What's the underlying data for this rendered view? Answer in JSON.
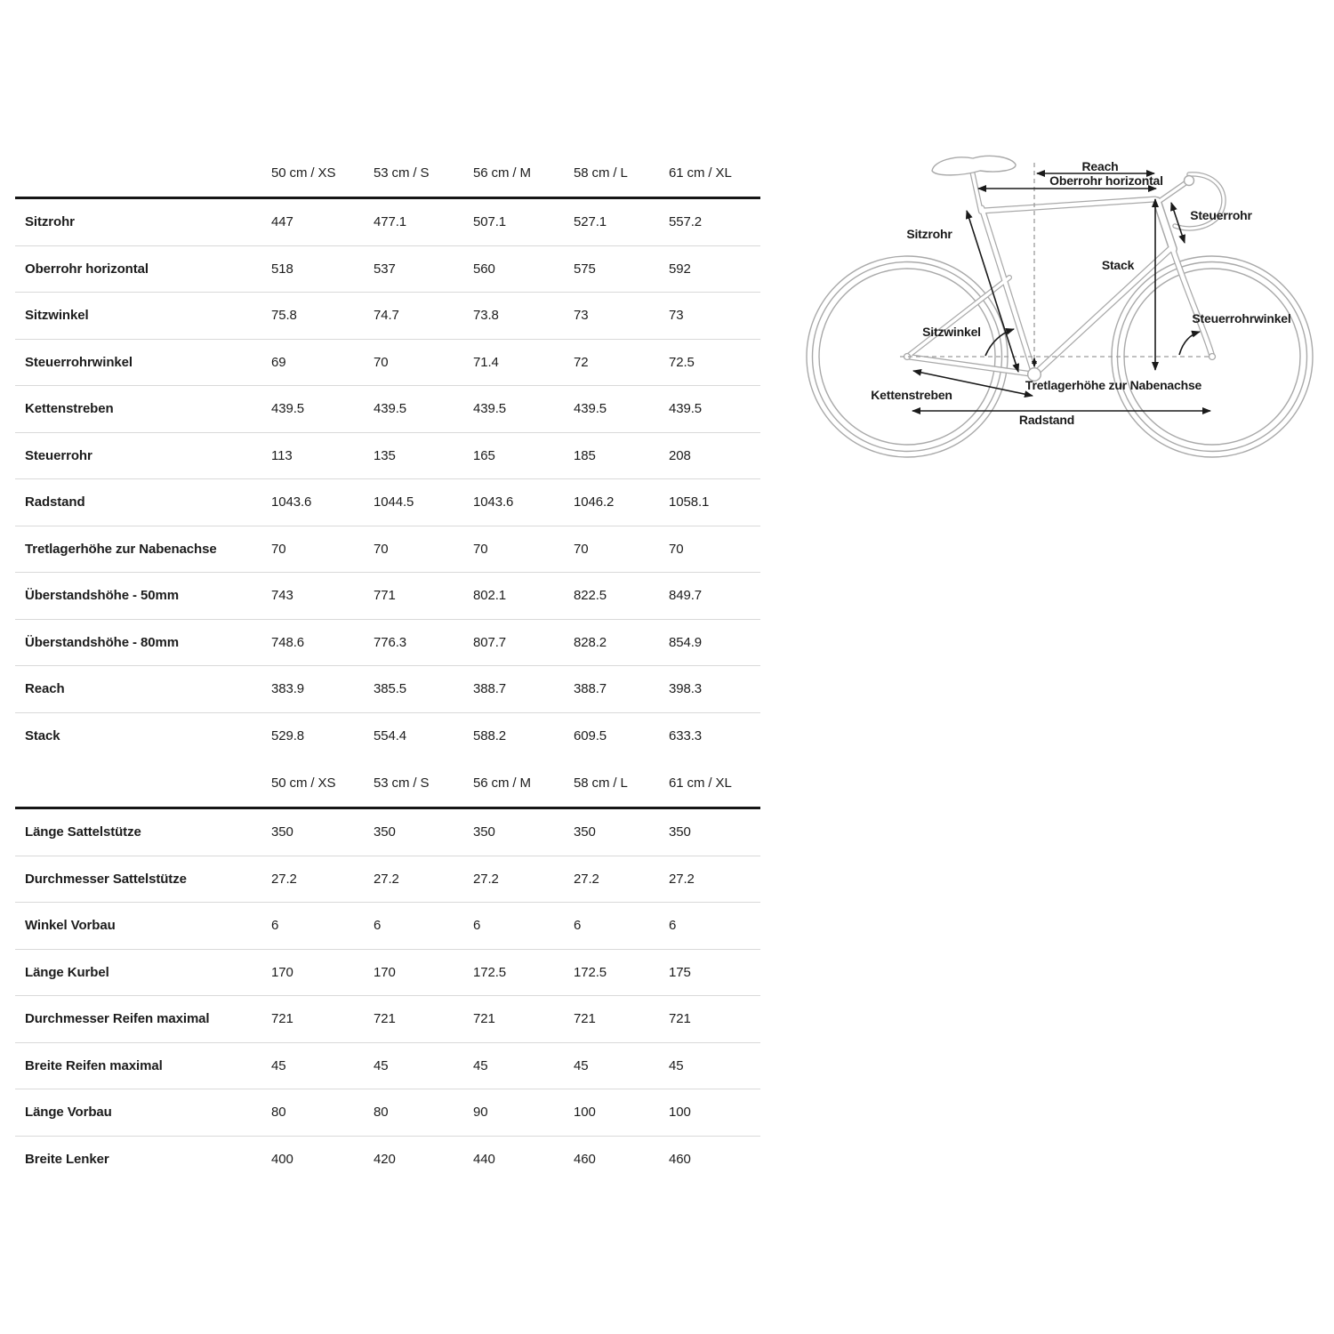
{
  "colors": {
    "text": "#1c1c1c",
    "header_rule": "#161616",
    "row_rule": "#d9d9d9",
    "diagram_line": "#a9a9a9",
    "dimension_line": "#1a1a1a"
  },
  "geometry_table": {
    "size_headers": [
      "50 cm / XS",
      "53 cm / S",
      "56 cm / M",
      "58 cm / L",
      "61 cm / XL"
    ],
    "section1": [
      {
        "label": "Sitzrohr",
        "values": [
          "447",
          "477.1",
          "507.1",
          "527.1",
          "557.2"
        ]
      },
      {
        "label": "Oberrohr horizontal",
        "values": [
          "518",
          "537",
          "560",
          "575",
          "592"
        ]
      },
      {
        "label": "Sitzwinkel",
        "values": [
          "75.8",
          "74.7",
          "73.8",
          "73",
          "73"
        ]
      },
      {
        "label": "Steuerrohrwinkel",
        "values": [
          "69",
          "70",
          "71.4",
          "72",
          "72.5"
        ]
      },
      {
        "label": "Kettenstreben",
        "values": [
          "439.5",
          "439.5",
          "439.5",
          "439.5",
          "439.5"
        ]
      },
      {
        "label": "Steuerrohr",
        "values": [
          "113",
          "135",
          "165",
          "185",
          "208"
        ]
      },
      {
        "label": "Radstand",
        "values": [
          "1043.6",
          "1044.5",
          "1043.6",
          "1046.2",
          "1058.1"
        ]
      },
      {
        "label": "Tretlagerhöhe zur Nabenachse",
        "values": [
          "70",
          "70",
          "70",
          "70",
          "70"
        ]
      },
      {
        "label": "Überstandshöhe - 50mm",
        "values": [
          "743",
          "771",
          "802.1",
          "822.5",
          "849.7"
        ]
      },
      {
        "label": "Überstandshöhe - 80mm",
        "values": [
          "748.6",
          "776.3",
          "807.7",
          "828.2",
          "854.9"
        ]
      },
      {
        "label": "Reach",
        "values": [
          "383.9",
          "385.5",
          "388.7",
          "388.7",
          "398.3"
        ]
      },
      {
        "label": "Stack",
        "values": [
          "529.8",
          "554.4",
          "588.2",
          "609.5",
          "633.3"
        ]
      }
    ],
    "section2": [
      {
        "label": "Länge Sattelstütze",
        "values": [
          "350",
          "350",
          "350",
          "350",
          "350"
        ]
      },
      {
        "label": "Durchmesser Sattelstütze",
        "values": [
          "27.2",
          "27.2",
          "27.2",
          "27.2",
          "27.2"
        ]
      },
      {
        "label": "Winkel Vorbau",
        "values": [
          "6",
          "6",
          "6",
          "6",
          "6"
        ]
      },
      {
        "label": "Länge Kurbel",
        "values": [
          "170",
          "170",
          "172.5",
          "172.5",
          "175"
        ]
      },
      {
        "label": "Durchmesser Reifen maximal",
        "values": [
          "721",
          "721",
          "721",
          "721",
          "721"
        ]
      },
      {
        "label": "Breite Reifen maximal",
        "values": [
          "45",
          "45",
          "45",
          "45",
          "45"
        ]
      },
      {
        "label": "Länge Vorbau",
        "values": [
          "80",
          "80",
          "90",
          "100",
          "100"
        ]
      },
      {
        "label": "Breite Lenker",
        "values": [
          "400",
          "420",
          "440",
          "460",
          "460"
        ]
      }
    ]
  },
  "diagram": {
    "labels": {
      "reach": "Reach",
      "oberrohr_horizontal": "Oberrohr horizontal",
      "steuerrohr": "Steuerrohr",
      "sitzrohr": "Sitzrohr",
      "stack": "Stack",
      "sitzwinkel": "Sitzwinkel",
      "steuerrohrwinkel": "Steuerrohrwinkel",
      "kettenstreben": "Kettenstreben",
      "tretlagerhoehe": "Tretlagerhöhe zur Nabenachse",
      "radstand": "Radstand"
    }
  }
}
